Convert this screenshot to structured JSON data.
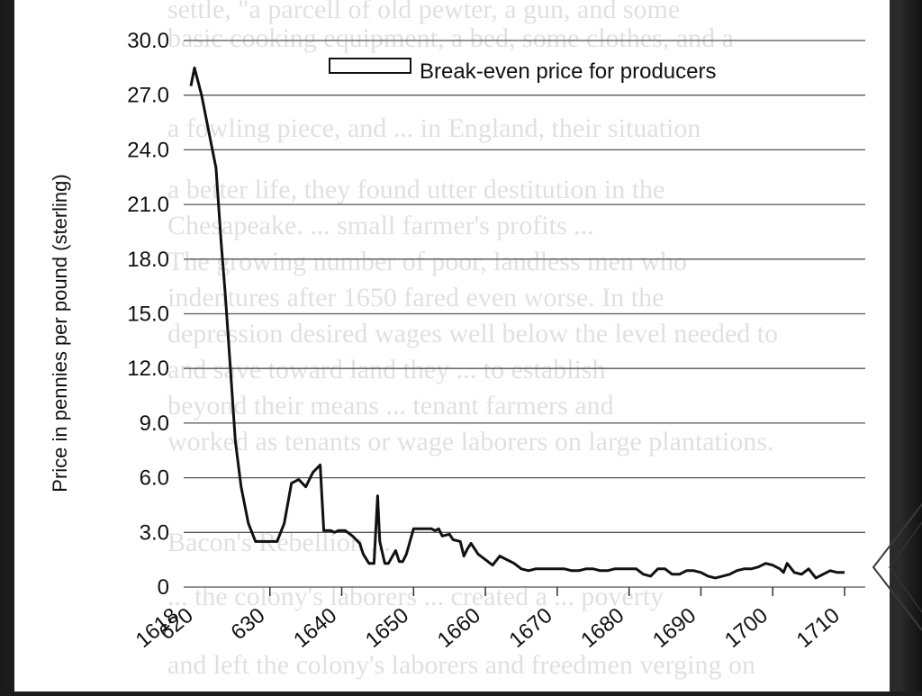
{
  "slide": {
    "background_color": "#1c1c1c",
    "photo_background": "#ffffff"
  },
  "chart_data": {
    "type": "line",
    "title": "",
    "ylabel": "Price in pennies per pound (sterling)",
    "xlabel": "",
    "ylim": [
      0,
      30
    ],
    "xlim": [
      1618,
      1711
    ],
    "yticks": [
      "0",
      "3.0",
      "6.0",
      "9.0",
      "12.0",
      "15.0",
      "18.0",
      "21.0",
      "24.0",
      "27.0",
      "30.0"
    ],
    "xticks": [
      "1618",
      "620",
      "630",
      "1640",
      "1650",
      "1660",
      "1670",
      "1680",
      "1690",
      "1700",
      "1710"
    ],
    "grid": "horizontal",
    "legend_position": "top-right",
    "line_color": "#111111",
    "series": [
      {
        "name": "Break-even price for producers",
        "x": [
          1619,
          1619.5,
          1620.5,
          1621.5,
          1622.5,
          1623.2,
          1623.8,
          1624.5,
          1625.2,
          1626,
          1627,
          1628,
          1629,
          1630,
          1631,
          1632,
          1633,
          1634,
          1635,
          1636,
          1637,
          1637.5,
          1638.5,
          1639,
          1639.5,
          1640.5,
          1641.5,
          1642.5,
          1643,
          1643.8,
          1644.5,
          1645,
          1645.3,
          1646,
          1646.5,
          1647.5,
          1648,
          1648.5,
          1649,
          1650,
          1651.5,
          1652.5,
          1653,
          1653.5,
          1654,
          1655,
          1655.5,
          1656.5,
          1657,
          1657.5,
          1658,
          1659,
          1660,
          1661,
          1662,
          1663,
          1664,
          1665,
          1666,
          1667,
          1668,
          1669,
          1670,
          1671,
          1672,
          1673,
          1674,
          1675,
          1676,
          1677,
          1678,
          1679,
          1680,
          1681,
          1682,
          1683,
          1684,
          1685,
          1686,
          1687,
          1688,
          1689,
          1690,
          1691,
          1692,
          1693,
          1694,
          1695,
          1696,
          1697,
          1698,
          1699,
          1700,
          1701,
          1701.5,
          1702,
          1703,
          1704,
          1705,
          1706,
          1707,
          1708,
          1709,
          1710
        ],
        "values": [
          27.5,
          28.5,
          27.0,
          25.0,
          23.0,
          19.0,
          16.0,
          12.0,
          8.0,
          5.5,
          3.5,
          2.5,
          2.5,
          2.5,
          2.5,
          3.5,
          5.7,
          5.9,
          5.5,
          6.3,
          6.7,
          3.1,
          3.1,
          3.0,
          3.1,
          3.1,
          2.8,
          2.4,
          1.8,
          1.3,
          1.3,
          5.0,
          2.5,
          1.3,
          1.3,
          2.0,
          1.4,
          1.4,
          1.8,
          3.2,
          3.2,
          3.2,
          3.1,
          3.2,
          2.8,
          2.9,
          2.6,
          2.5,
          1.7,
          2.1,
          2.4,
          1.8,
          1.5,
          1.2,
          1.7,
          1.5,
          1.3,
          1.0,
          0.9,
          1.0,
          1.0,
          1.0,
          1.0,
          1.0,
          0.9,
          0.9,
          1.0,
          1.0,
          0.9,
          0.9,
          1.0,
          1.0,
          1.0,
          1.0,
          0.7,
          0.6,
          1.0,
          1.0,
          0.7,
          0.7,
          0.9,
          0.9,
          0.8,
          0.6,
          0.5,
          0.6,
          0.7,
          0.9,
          1.0,
          1.0,
          1.1,
          1.3,
          1.2,
          1.0,
          0.8,
          1.3,
          0.8,
          0.7,
          1.0,
          0.5,
          0.7,
          0.9,
          0.8,
          0.8
        ]
      }
    ]
  }
}
